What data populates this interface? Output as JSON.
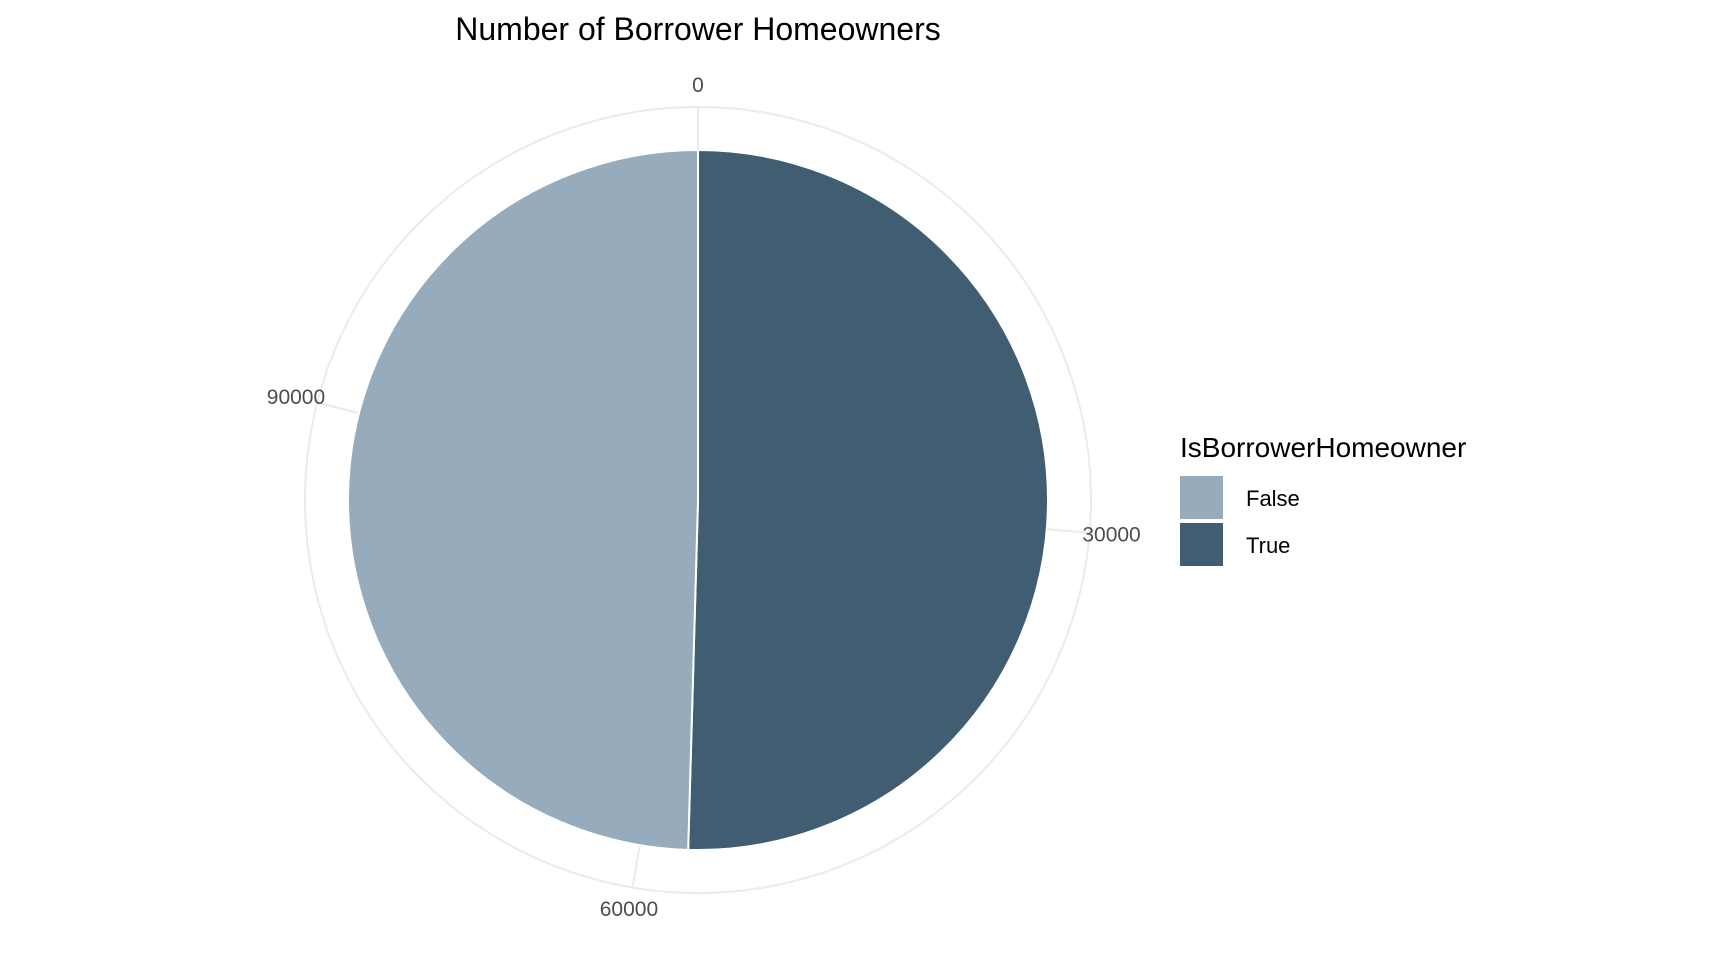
{
  "chart_data": {
    "type": "pie",
    "title": "Number of Borrower Homeowners",
    "legend_title": "IsBorrowerHomeowner",
    "legend_position": "right",
    "categories": [
      "False",
      "True"
    ],
    "values": [
      56459,
      57478
    ],
    "colors": [
      "#96acbc",
      "#415d72"
    ],
    "axis_ticks": [
      0,
      30000,
      60000,
      90000
    ],
    "axis_max": 113937,
    "grid": true
  }
}
